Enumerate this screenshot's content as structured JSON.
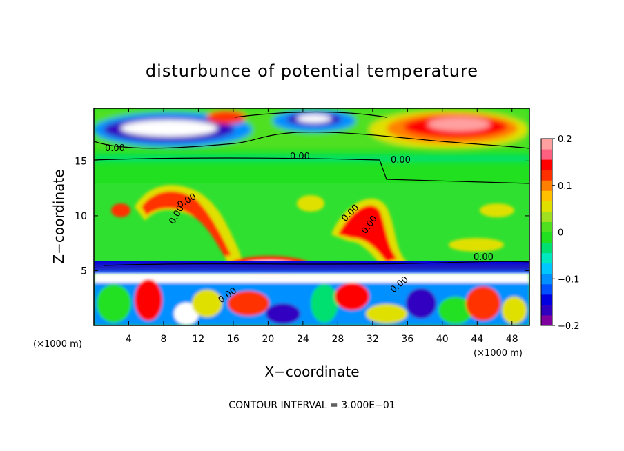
{
  "chart_data": {
    "type": "heatmap",
    "title": "disturbunce of potential temperature",
    "xlabel": "X−coordinate",
    "ylabel": "Z−coordinate",
    "x_unit": "(×1000 m)",
    "y_unit": "(×1000 m)",
    "xlim": [
      0,
      50
    ],
    "ylim": [
      0,
      19.8
    ],
    "x_ticks": [
      "4",
      "8",
      "12",
      "16",
      "20",
      "24",
      "28",
      "32",
      "36",
      "40",
      "44",
      "48"
    ],
    "y_ticks": [
      "5",
      "10",
      "15"
    ],
    "footer": "CONTOUR INTERVAL = 3.000E−01",
    "contour_labels": [
      "0.00",
      "0.00",
      "0.00",
      "0.00",
      "0.00",
      "0.00",
      "0.00",
      "0.00",
      "0.00",
      "0.00"
    ],
    "colorbar": {
      "min": -0.2,
      "max": 0.2,
      "tick_labels": [
        "0.2",
        "0.1",
        "0",
        "−0.1",
        "−0.2"
      ],
      "tick_values": [
        0.2,
        0.1,
        0,
        -0.1,
        -0.2
      ],
      "colors": [
        "#8000a0",
        "#3000c0",
        "#0000e0",
        "#0050ff",
        "#0090ff",
        "#00c8ff",
        "#00e8c0",
        "#00e070",
        "#20e020",
        "#50e020",
        "#a0e020",
        "#e0e000",
        "#ffc000",
        "#ff8000",
        "#ff3000",
        "#ff0000",
        "#ff6080",
        "#ffa0a0"
      ]
    }
  }
}
